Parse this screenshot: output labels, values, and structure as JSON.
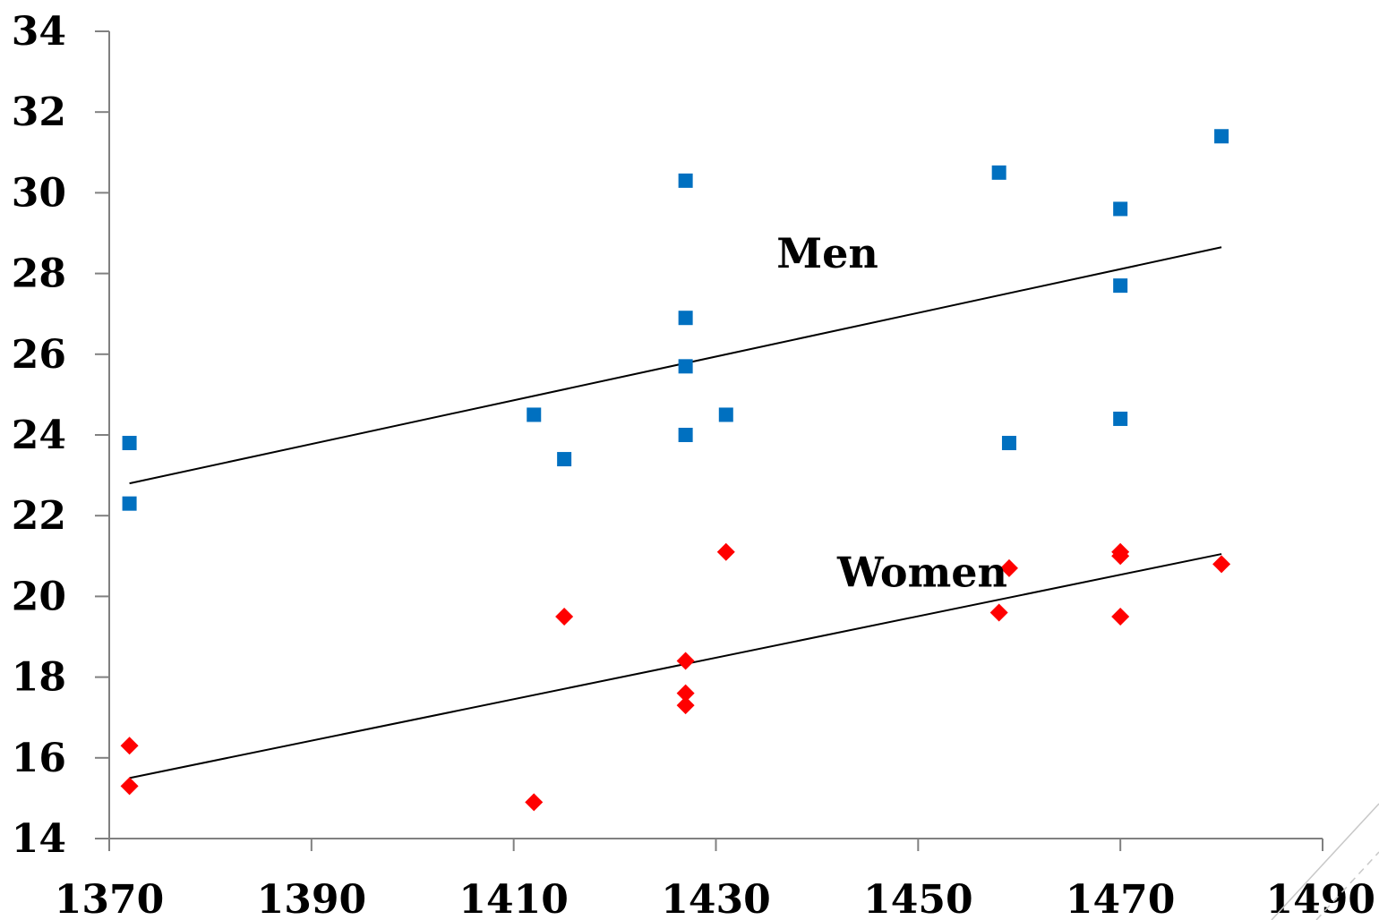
{
  "chart_data": {
    "type": "scatter",
    "title": "",
    "xlabel": "",
    "ylabel": "",
    "xlim": [
      1370,
      1490
    ],
    "ylim": [
      14,
      34
    ],
    "x_ticks": [
      1370,
      1390,
      1410,
      1430,
      1450,
      1470,
      1490
    ],
    "y_ticks": [
      14,
      16,
      18,
      20,
      22,
      24,
      26,
      28,
      30,
      32,
      34
    ],
    "grid": false,
    "legend": "none",
    "series": [
      {
        "name": "Men",
        "marker": "square",
        "color": "#0070C0",
        "points": [
          [
            1372,
            23.8
          ],
          [
            1372,
            22.3
          ],
          [
            1412,
            24.5
          ],
          [
            1415,
            23.4
          ],
          [
            1427,
            30.3
          ],
          [
            1427,
            26.9
          ],
          [
            1427,
            25.7
          ],
          [
            1427,
            24.0
          ],
          [
            1431,
            24.5
          ],
          [
            1458,
            30.5
          ],
          [
            1459,
            23.8
          ],
          [
            1470,
            29.6
          ],
          [
            1470,
            27.7
          ],
          [
            1470,
            24.4
          ],
          [
            1480,
            31.4
          ]
        ],
        "trendline": [
          [
            1372,
            22.8
          ],
          [
            1480,
            28.65
          ]
        ],
        "label_position": [
          1436,
          28.5
        ]
      },
      {
        "name": "Women",
        "marker": "diamond",
        "color": "#FF0000",
        "points": [
          [
            1372,
            16.3
          ],
          [
            1372,
            15.3
          ],
          [
            1412,
            14.9
          ],
          [
            1415,
            19.5
          ],
          [
            1427,
            18.4
          ],
          [
            1427,
            17.6
          ],
          [
            1427,
            17.3
          ],
          [
            1431,
            21.1
          ],
          [
            1458,
            19.6
          ],
          [
            1459,
            20.7
          ],
          [
            1470,
            21.1
          ],
          [
            1470,
            21.0
          ],
          [
            1470,
            19.5
          ],
          [
            1480,
            20.8
          ]
        ],
        "trendline": [
          [
            1372,
            15.5
          ],
          [
            1480,
            21.05
          ]
        ],
        "label_position": [
          1442,
          20.6
        ]
      }
    ]
  }
}
